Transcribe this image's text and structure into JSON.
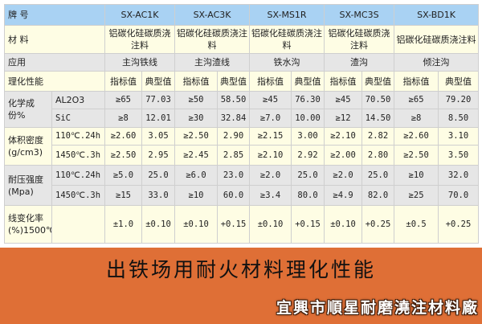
{
  "table": {
    "rows": [
      {
        "style": "blue",
        "h": 26,
        "cells": [
          {
            "t": "牌 号",
            "span": 2,
            "lbl": true
          },
          {
            "t": "SX-AC1K",
            "span": 2
          },
          {
            "t": "SX-AC3K",
            "span": 2
          },
          {
            "t": "SX-MS1R",
            "span": 2
          },
          {
            "t": "SX-MC3S",
            "span": 2
          },
          {
            "t": "SX-BD1K",
            "span": 2
          }
        ]
      },
      {
        "style": "yellow",
        "h": 35,
        "cells": [
          {
            "t": "材 料",
            "span": 2,
            "lbl": true
          },
          {
            "t": "铝碳化硅碳质浇注料",
            "span": 2
          },
          {
            "t": "铝碳化硅碳质浇注料",
            "span": 2
          },
          {
            "t": "铝碳化硅碳质浇注料",
            "span": 2
          },
          {
            "t": "铝碳化硅碳质浇注料",
            "span": 2
          },
          {
            "t": "铝碳化硅碳质浇注料",
            "span": 2
          }
        ]
      },
      {
        "style": "gray",
        "h": 22,
        "cells": [
          {
            "t": "应用",
            "span": 2,
            "lbl": true
          },
          {
            "t": "主沟铁线",
            "span": 2
          },
          {
            "t": "主沟渣线",
            "span": 2
          },
          {
            "t": "铁水沟",
            "span": 2
          },
          {
            "t": "渣沟",
            "span": 2
          },
          {
            "t": "倾注沟",
            "span": 2
          }
        ]
      },
      {
        "style": "yellow",
        "h": 25,
        "cells": [
          {
            "t": "理化性能",
            "span": 2,
            "lbl": true
          },
          {
            "t": "指标值"
          },
          {
            "t": "典型值"
          },
          {
            "t": "指标值"
          },
          {
            "t": "典型值"
          },
          {
            "t": "指标值"
          },
          {
            "t": "典型值"
          },
          {
            "t": "指标值"
          },
          {
            "t": "典型值"
          },
          {
            "t": "指标值"
          },
          {
            "t": "典型值"
          }
        ]
      },
      {
        "style": "gray",
        "h": 22,
        "cells": [
          {
            "t": "化学成份%",
            "rowspan": 2,
            "lbl": true
          },
          {
            "t": "AL2O3",
            "lbl": true,
            "chem": true
          },
          {
            "t": "≥65",
            "n": 1
          },
          {
            "t": "77.03",
            "n": 1
          },
          {
            "t": "≥50",
            "n": 1
          },
          {
            "t": "58.50",
            "n": 1
          },
          {
            "t": "≥45",
            "n": 1
          },
          {
            "t": "76.30",
            "n": 1
          },
          {
            "t": "≥45",
            "n": 1
          },
          {
            "t": "70.50",
            "n": 1
          },
          {
            "t": "≥65",
            "n": 1
          },
          {
            "t": "79.20",
            "n": 1
          }
        ]
      },
      {
        "style": "gray",
        "h": 23,
        "cells": [
          {
            "t": "SiC",
            "lbl": true,
            "n": 1
          },
          {
            "t": "≥8",
            "n": 1
          },
          {
            "t": "12.01",
            "n": 1
          },
          {
            "t": "≥30",
            "n": 1
          },
          {
            "t": "32.84",
            "n": 1
          },
          {
            "t": "≥7.0",
            "n": 1
          },
          {
            "t": "10.00",
            "n": 1
          },
          {
            "t": "≥12",
            "n": 1
          },
          {
            "t": "14.50",
            "n": 1
          },
          {
            "t": "≥8",
            "n": 1
          },
          {
            "t": "8.50",
            "n": 1
          }
        ]
      },
      {
        "style": "yellow",
        "h": 22,
        "cells": [
          {
            "t": "体积密度(g/cm3)",
            "rowspan": 2,
            "lbl": true
          },
          {
            "t": "110℃.24h",
            "lbl": true,
            "n": 1
          },
          {
            "t": "≥2.60",
            "n": 1
          },
          {
            "t": "3.05",
            "n": 1
          },
          {
            "t": "≥2.50",
            "n": 1
          },
          {
            "t": "2.90",
            "n": 1
          },
          {
            "t": "≥2.15",
            "n": 1
          },
          {
            "t": "3.00",
            "n": 1
          },
          {
            "t": "≥2.10",
            "n": 1
          },
          {
            "t": "2.82",
            "n": 1
          },
          {
            "t": "≥2.60",
            "n": 1
          },
          {
            "t": "3.10",
            "n": 1
          }
        ]
      },
      {
        "style": "yellow",
        "h": 25,
        "cells": [
          {
            "t": "1450℃.3h",
            "lbl": true,
            "n": 1
          },
          {
            "t": "≥2.50",
            "n": 1
          },
          {
            "t": "2.95",
            "n": 1
          },
          {
            "t": "≥2.45",
            "n": 1
          },
          {
            "t": "2.85",
            "n": 1
          },
          {
            "t": "≥2.10",
            "n": 1
          },
          {
            "t": "2.92",
            "n": 1
          },
          {
            "t": "≥2.00",
            "n": 1
          },
          {
            "t": "2.80",
            "n": 1
          },
          {
            "t": "≥2.50",
            "n": 1
          },
          {
            "t": "3.50",
            "n": 1
          }
        ]
      },
      {
        "style": "gray",
        "h": 25,
        "cells": [
          {
            "t": "耐压强度(Mpa)",
            "rowspan": 2,
            "lbl": true
          },
          {
            "t": "110℃.24h",
            "lbl": true,
            "n": 1
          },
          {
            "t": "≥5.0",
            "n": 1
          },
          {
            "t": "25.0",
            "n": 1
          },
          {
            "t": "≥6.0",
            "n": 1
          },
          {
            "t": "23.0",
            "n": 1
          },
          {
            "t": "≥2.0",
            "n": 1
          },
          {
            "t": "25.0",
            "n": 1
          },
          {
            "t": "≥2.0",
            "n": 1
          },
          {
            "t": "25.0",
            "n": 1
          },
          {
            "t": "≥10",
            "n": 1
          },
          {
            "t": "32.0",
            "n": 1
          }
        ]
      },
      {
        "style": "gray",
        "h": 25,
        "cells": [
          {
            "t": "1450℃.3h",
            "lbl": true,
            "n": 1
          },
          {
            "t": "≥15",
            "n": 1
          },
          {
            "t": "33.0",
            "n": 1
          },
          {
            "t": "≥10",
            "n": 1
          },
          {
            "t": "60.0",
            "n": 1
          },
          {
            "t": "≥3.4",
            "n": 1
          },
          {
            "t": "80.0",
            "n": 1
          },
          {
            "t": "≥4.9",
            "n": 1
          },
          {
            "t": "82.0",
            "n": 1
          },
          {
            "t": "≥25",
            "n": 1
          },
          {
            "t": "70.0",
            "n": 1
          }
        ]
      },
      {
        "style": "yellow",
        "h": 47,
        "cells": [
          {
            "t": "线变化率(%)1500℃.3h",
            "lbl": true
          },
          {
            "t": ""
          },
          {
            "t": "±1.0",
            "n": 1
          },
          {
            "t": "±0.10",
            "n": 1
          },
          {
            "t": "±0.10",
            "n": 1
          },
          {
            "t": "+0.15",
            "n": 1
          },
          {
            "t": "±0.10",
            "n": 1
          },
          {
            "t": "+0.15",
            "n": 1
          },
          {
            "t": "±0.10",
            "n": 1
          },
          {
            "t": "+0.25",
            "n": 1
          },
          {
            "t": "±0.5",
            "n": 1
          },
          {
            "t": "+0.25",
            "n": 1
          }
        ]
      }
    ]
  },
  "banner": {
    "title": "出铁场用耐火材料理化性能",
    "company": "宜興市順星耐磨澆注材料廠"
  },
  "colors": {
    "header": "#a9d2f3",
    "yellow_row": "#fefde4",
    "gray_row": "#e6e6e6",
    "banner": "#df6f36"
  }
}
